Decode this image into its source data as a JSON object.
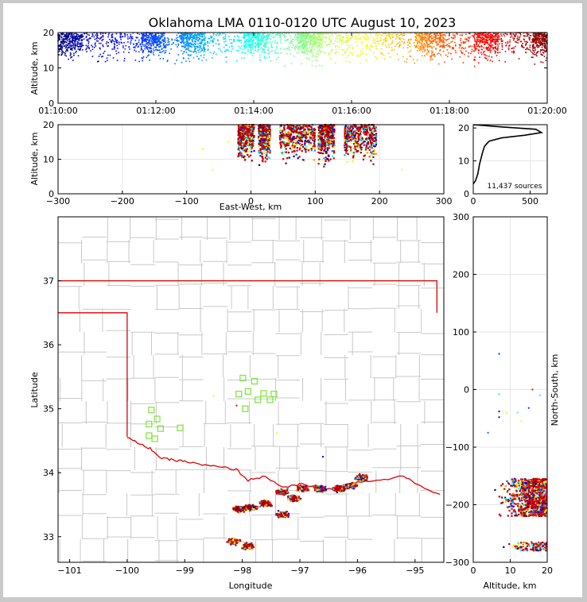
{
  "chart_data": [
    {
      "id": "time_height",
      "type": "scatter",
      "title": "Oklahoma LMA 0110-0120 UTC August 10, 2023",
      "xlabel": "",
      "ylabel": "Altitude, km",
      "x_ticks": [
        "01:10:00",
        "01:12:00",
        "01:14:00",
        "01:16:00",
        "01:18:00",
        "01:20:00"
      ],
      "y_ticks": [
        "0",
        "10",
        "20"
      ],
      "xlim": [
        "01:10:00",
        "01:20:00"
      ],
      "ylim": [
        0,
        20
      ],
      "colormap": "jet (time)",
      "density_bands_minutes": [
        [
          0.0,
          0.5
        ],
        [
          1.7,
          2.2
        ],
        [
          2.5,
          3.0
        ],
        [
          3.8,
          4.3
        ],
        [
          4.9,
          5.4
        ],
        [
          7.3,
          7.9
        ],
        [
          8.5,
          9.0
        ],
        [
          9.7,
          10.0
        ]
      ]
    },
    {
      "id": "ew_height",
      "type": "scatter",
      "xlabel": "East-West, km",
      "ylabel": "Altitude, km",
      "x_ticks": [
        "−300",
        "−200",
        "−100",
        "0",
        "100",
        "200",
        "300"
      ],
      "y_ticks": [
        "0",
        "10",
        "20"
      ],
      "xlim": [
        -300,
        300
      ],
      "ylim": [
        0,
        20
      ],
      "clusters_km": [
        [
          -20,
          5,
          20
        ],
        [
          12,
          30,
          20
        ],
        [
          45,
          100,
          20
        ],
        [
          105,
          130,
          19
        ],
        [
          145,
          195,
          18
        ]
      ]
    },
    {
      "id": "altitude_histogram",
      "type": "line",
      "x_ticks": [
        "0",
        "500"
      ],
      "y_ticks": [
        "0",
        "10",
        "20"
      ],
      "xlim": [
        0,
        650
      ],
      "ylim": [
        0,
        21
      ],
      "annotation": "11,437 sources",
      "profile": [
        [
          0,
          3
        ],
        [
          20,
          4
        ],
        [
          40,
          6
        ],
        [
          55,
          9
        ],
        [
          70,
          11
        ],
        [
          85,
          13
        ],
        [
          100,
          14.5
        ],
        [
          140,
          16
        ],
        [
          250,
          17
        ],
        [
          450,
          17.8
        ],
        [
          600,
          18.6
        ],
        [
          550,
          19.6
        ],
        [
          300,
          20.2
        ],
        [
          150,
          20.6
        ],
        [
          0,
          21
        ]
      ]
    },
    {
      "id": "plan_view",
      "type": "scatter",
      "xlabel": "Longitude",
      "ylabel": "Latitude",
      "x_ticks": [
        "−101",
        "−100",
        "−99",
        "−98",
        "−97",
        "−96",
        "−95"
      ],
      "y_ticks": [
        "33",
        "34",
        "35",
        "36",
        "37"
      ],
      "xlim": [
        -101.2,
        -94.5
      ],
      "ylim": [
        32.6,
        38.0
      ],
      "station_markers": [
        [
          -97.99,
          35.48
        ],
        [
          -97.79,
          35.43
        ],
        [
          -97.9,
          35.27
        ],
        [
          -98.06,
          35.23
        ],
        [
          -97.63,
          35.24
        ],
        [
          -97.45,
          35.23
        ],
        [
          -97.52,
          35.14
        ],
        [
          -97.73,
          35.14
        ],
        [
          -97.95,
          35.0
        ],
        [
          -99.58,
          34.98
        ],
        [
          -99.48,
          34.84
        ],
        [
          -99.62,
          34.76
        ],
        [
          -99.42,
          34.69
        ],
        [
          -99.08,
          34.7
        ],
        [
          -99.62,
          34.58
        ],
        [
          -99.52,
          34.53
        ]
      ],
      "source_clusters": [
        [
          -98.05,
          33.43
        ],
        [
          -97.85,
          33.46
        ],
        [
          -97.6,
          33.52
        ],
        [
          -97.3,
          33.7
        ],
        [
          -97.1,
          33.6
        ],
        [
          -96.95,
          33.75
        ],
        [
          -96.65,
          33.75
        ],
        [
          -96.3,
          33.75
        ],
        [
          -96.1,
          33.8
        ],
        [
          -95.92,
          33.92
        ],
        [
          -97.3,
          33.35
        ],
        [
          -97.9,
          32.85
        ],
        [
          -98.15,
          32.92
        ]
      ]
    },
    {
      "id": "ns_height",
      "type": "scatter",
      "xlabel": "Altitude, km",
      "ylabel": "North-South, km",
      "x_ticks": [
        "0",
        "10",
        "20"
      ],
      "y_ticks": [
        "−300",
        "−200",
        "−100",
        "0",
        "100",
        "200",
        "300"
      ],
      "xlim": [
        0,
        20
      ],
      "ylim": [
        -300,
        300
      ],
      "clusters_km": [
        [
          -220,
          -155
        ],
        [
          -280,
          -265
        ]
      ]
    }
  ]
}
